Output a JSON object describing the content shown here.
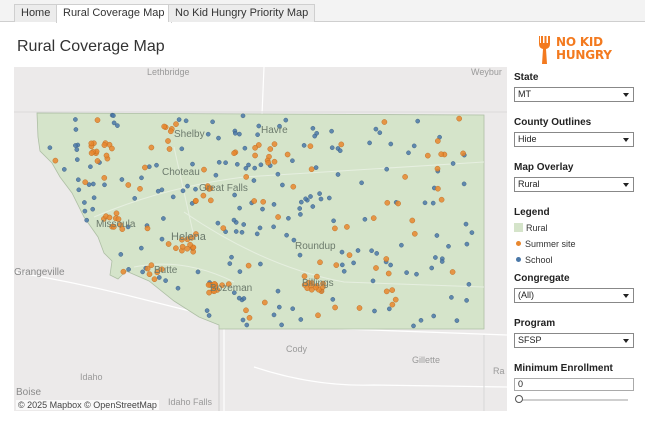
{
  "tabs": [
    {
      "label": "Home",
      "active": false
    },
    {
      "label": "Rural Coverage Map",
      "active": true
    },
    {
      "label": "No Kid Hungry Priority Map",
      "active": false
    }
  ],
  "page_title": "Rural Coverage Map",
  "logo": {
    "line1": "NO KID",
    "line2": "HUNGRY",
    "color": "#f37a1f"
  },
  "map": {
    "attribution": "© 2025 Mapbox  © OpenStreetMap",
    "places": {
      "lethbridge": "Lethbridge",
      "weyburn": "Weybur",
      "shelby": "Shelby",
      "havre": "Havre",
      "choteau": "Choteau",
      "great_falls": "Great Falls",
      "missoula": "Missoula",
      "helena": "Helena",
      "roundup": "Roundup",
      "butte": "Butte",
      "bozeman": "Bozeman",
      "billings": "Billings",
      "grangeville": "Grangeville",
      "cody": "Cody",
      "gillette": "Gillette",
      "idaho": "Idaho",
      "boise": "Boise",
      "idaho_falls": "Idaho Falls",
      "rapid": "Ra"
    },
    "colors": {
      "rural": "#d5e4ca",
      "summer_site": "#e8872e",
      "school": "#4a78a8"
    }
  },
  "filters": {
    "state": {
      "label": "State",
      "value": "MT"
    },
    "county_outlines": {
      "label": "County Outlines",
      "value": "Hide"
    },
    "map_overlay": {
      "label": "Map Overlay",
      "value": "Rural"
    },
    "legend": {
      "label": "Legend",
      "items": [
        "Rural",
        "Summer site",
        "School"
      ]
    },
    "congregate": {
      "label": "Congregate",
      "value": "(All)"
    },
    "program": {
      "label": "Program",
      "value": "SFSP"
    },
    "min_enrollment": {
      "label": "Minimum Enrollment",
      "value": "0",
      "slider_fraction": 0
    }
  }
}
